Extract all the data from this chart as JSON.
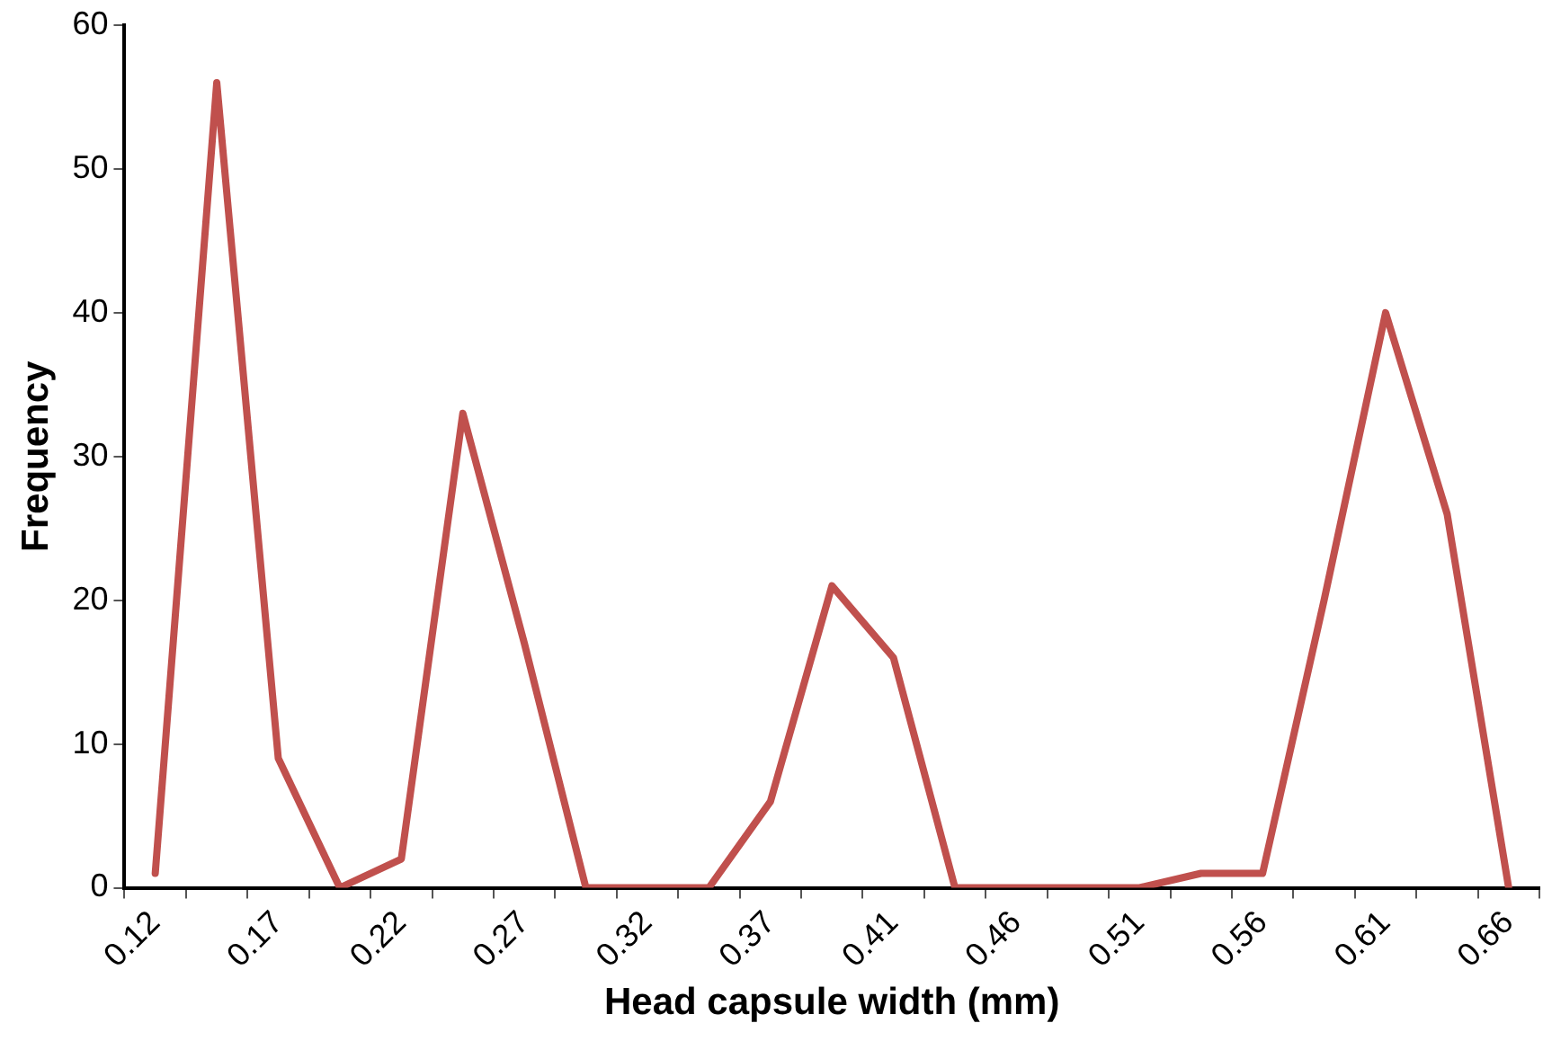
{
  "chart_data": {
    "type": "line",
    "xlabel": "Head capsule width (mm)",
    "ylabel": "Frequency",
    "categories": [
      "0.12",
      null,
      "0.17",
      null,
      "0.22",
      null,
      "0.27",
      null,
      "0.32",
      null,
      "0.37",
      null,
      "0.41",
      null,
      "0.46",
      null,
      "0.51",
      null,
      "0.56",
      null,
      "0.61",
      null,
      "0.66"
    ],
    "series": [
      {
        "color": "#c0504d",
        "values": [
          1,
          56,
          9,
          0,
          2,
          33,
          17,
          0,
          0,
          0,
          6,
          21,
          16,
          0,
          0,
          0,
          0,
          1,
          1,
          20,
          40,
          26,
          0
        ]
      }
    ],
    "ylim": [
      0,
      60
    ],
    "yticks": [
      0,
      10,
      20,
      30,
      40,
      50,
      60
    ],
    "grid": false,
    "legend": false,
    "marker": "none",
    "line_style": "solid"
  }
}
